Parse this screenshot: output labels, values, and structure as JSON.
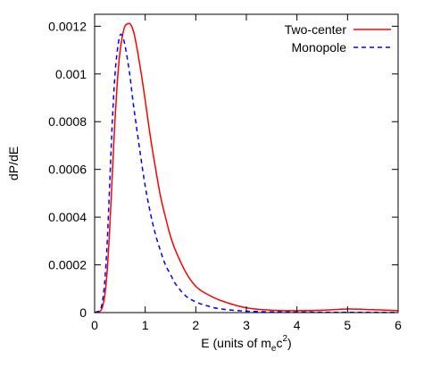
{
  "chart_data": {
    "type": "line",
    "xlabel_main": "E (units of m",
    "xlabel_sub": "e",
    "xlabel_mid": "c",
    "xlabel_sup": "2",
    "xlabel_close": ")",
    "ylabel": "dP/dE",
    "xlim": [
      0,
      6
    ],
    "ylim": [
      0,
      0.00125
    ],
    "x_ticks": [
      0,
      1,
      2,
      3,
      4,
      5,
      6
    ],
    "x_tick_labels": [
      "0",
      "1",
      "2",
      "3",
      "4",
      "5",
      "6"
    ],
    "y_ticks": [
      0,
      0.0002,
      0.0004,
      0.0006,
      0.0008,
      0.001,
      0.0012
    ],
    "y_tick_labels": [
      "0",
      "0.0002",
      "0.0004",
      "0.0006",
      "0.0008",
      "0.001",
      "0.0012"
    ],
    "grid": false,
    "legend_position": "top-right",
    "series": [
      {
        "name": "Two-center",
        "color": "#ff0000",
        "dash": "solid",
        "x": [
          0,
          0.1,
          0.15,
          0.2,
          0.25,
          0.3,
          0.35,
          0.4,
          0.45,
          0.5,
          0.55,
          0.6,
          0.65,
          0.7,
          0.75,
          0.8,
          0.9,
          1.0,
          1.1,
          1.2,
          1.3,
          1.4,
          1.5,
          1.6,
          1.8,
          2.0,
          2.2,
          2.5,
          3.0,
          3.5,
          4.0,
          4.5,
          5.0,
          5.5,
          6.0
        ],
        "y": [
          0,
          5e-06,
          2e-05,
          7e-05,
          0.00018,
          0.00036,
          0.00058,
          0.0008,
          0.00097,
          0.00109,
          0.00116,
          0.0012,
          0.00121,
          0.00121,
          0.00119,
          0.00115,
          0.00103,
          0.00089,
          0.00074,
          0.00061,
          0.00049,
          0.0004,
          0.00032,
          0.00026,
          0.00017,
          0.00011,
          8e-05,
          5e-05,
          2e-05,
          1e-05,
          8e-06,
          1e-05,
          1.5e-05,
          1.2e-05,
          8e-06
        ]
      },
      {
        "name": "Monopole",
        "color": "#0000ff",
        "dash": "dashed",
        "x": [
          0,
          0.1,
          0.15,
          0.2,
          0.25,
          0.3,
          0.35,
          0.4,
          0.45,
          0.5,
          0.55,
          0.6,
          0.65,
          0.7,
          0.75,
          0.8,
          0.9,
          1.0,
          1.1,
          1.2,
          1.3,
          1.4,
          1.5,
          1.6,
          1.8,
          2.0,
          2.2,
          2.5,
          3.0,
          3.5,
          4.0,
          5.0,
          6.0
        ],
        "y": [
          0,
          1e-05,
          4e-05,
          0.00013,
          0.0003,
          0.00055,
          0.0008,
          0.00099,
          0.0011,
          0.00116,
          0.00116,
          0.00112,
          0.00106,
          0.00099,
          0.0009,
          0.00082,
          0.00067,
          0.00053,
          0.00042,
          0.00033,
          0.00026,
          0.0002,
          0.00016,
          0.00012,
          7e-05,
          4.5e-05,
          3e-05,
          1.5e-05,
          6e-06,
          3e-06,
          2e-06,
          1e-06,
          5e-07
        ]
      }
    ]
  }
}
